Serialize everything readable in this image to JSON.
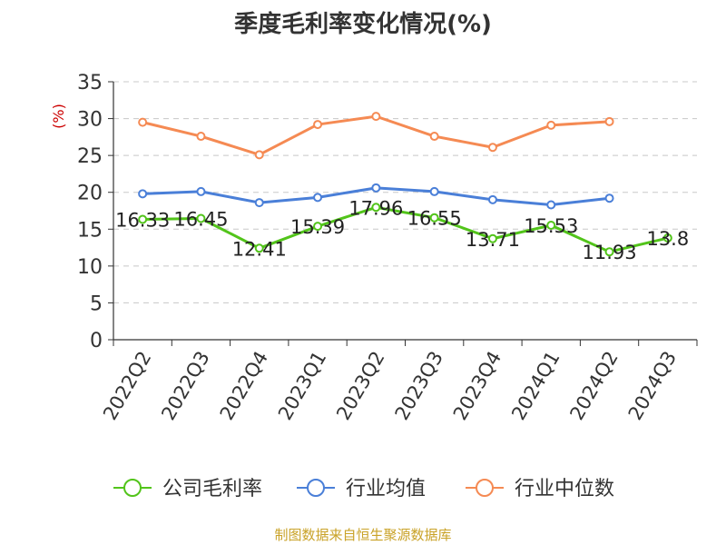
{
  "title": "季度毛利率变化情况(%)",
  "source": "制图数据来自恒生聚源数据库",
  "chart_data": {
    "type": "line",
    "title": "季度毛利率变化情况(%)",
    "ylabel": "(%)",
    "xlabel": "",
    "ylim": [
      0,
      35
    ],
    "yticks": [
      0,
      5,
      10,
      15,
      20,
      25,
      30,
      35
    ],
    "grid": true,
    "legend_position": "bottom",
    "categories": [
      "2022Q2",
      "2022Q3",
      "2022Q4",
      "2023Q1",
      "2023Q2",
      "2023Q3",
      "2023Q4",
      "2024Q1",
      "2024Q2",
      "2024Q3"
    ],
    "series": [
      {
        "name": "公司毛利率",
        "color": "#52c41a",
        "values": [
          16.33,
          16.45,
          12.41,
          15.39,
          17.96,
          16.55,
          13.71,
          15.53,
          11.93,
          13.8
        ],
        "data_labels": [
          "16.33",
          "16.45",
          "12.41",
          "15.39",
          "17.96",
          "16.55",
          "13.71",
          "15.53",
          "11.93",
          "13.8"
        ]
      },
      {
        "name": "行业均值",
        "color": "#4a7fd8",
        "values": [
          19.8,
          20.1,
          18.6,
          19.3,
          20.6,
          20.1,
          19.0,
          18.3,
          19.2,
          null
        ]
      },
      {
        "name": "行业中位数",
        "color": "#f58a53",
        "values": [
          29.5,
          27.6,
          25.1,
          29.2,
          30.3,
          27.6,
          26.1,
          29.1,
          29.6,
          null
        ]
      }
    ]
  }
}
